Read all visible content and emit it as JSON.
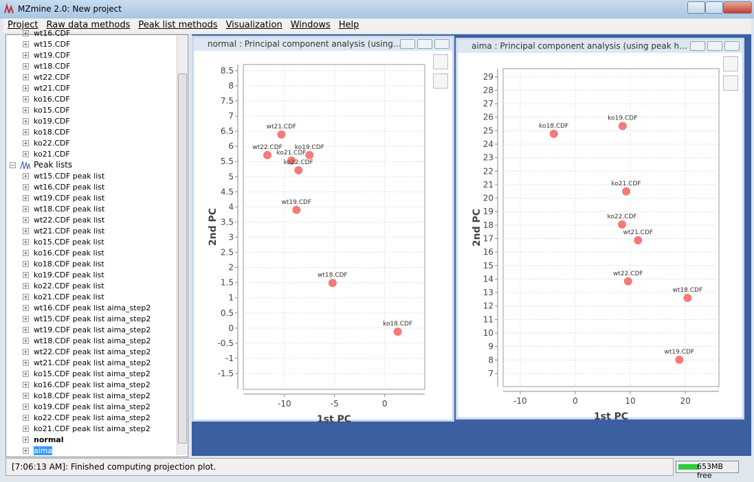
{
  "window": {
    "title": "MZmine 2.0: New project"
  },
  "menu": [
    "Project",
    "Raw data methods",
    "Peak list methods",
    "Visualization",
    "Windows",
    "Help"
  ],
  "tree": {
    "raw_files": [
      "wt16.CDF",
      "wt15.CDF",
      "wt19.CDF",
      "wt18.CDF",
      "wt22.CDF",
      "wt21.CDF",
      "ko16.CDF",
      "ko15.CDF",
      "ko19.CDF",
      "ko18.CDF",
      "ko22.CDF",
      "ko21.CDF"
    ],
    "peak_lists_heading": "Peak lists",
    "peak_lists": [
      "wt15.CDF peak list",
      "wt16.CDF peak list",
      "wt19.CDF peak list",
      "wt18.CDF peak list",
      "wt22.CDF peak list",
      "wt21.CDF peak list",
      "ko15.CDF peak list",
      "ko16.CDF peak list",
      "ko18.CDF peak list",
      "ko19.CDF peak list",
      "ko22.CDF peak list",
      "ko21.CDF peak list",
      "wt16.CDF peak list aima_step2",
      "wt15.CDF peak list aima_step2",
      "wt19.CDF peak list aima_step2",
      "wt18.CDF peak list aima_step2",
      "wt22.CDF peak list aima_step2",
      "wt21.CDF peak list aima_step2",
      "ko15.CDF peak list aima_step2",
      "ko16.CDF peak list aima_step2",
      "ko18.CDF peak list aima_step2",
      "ko19.CDF peak list aima_step2",
      "ko22.CDF peak list aima_step2",
      "ko21.CDF peak list aima_step2"
    ],
    "plots": [
      "normal",
      "aima"
    ]
  },
  "windows": [
    {
      "title": "normal : Principal component analysis (using…"
    },
    {
      "title": "aima : Principal component analysis (using peak h…"
    }
  ],
  "status": {
    "message": "[7:06:13 AM]: Finished computing projection plot.",
    "memory": "653MB free"
  },
  "chart_data": [
    {
      "type": "scatter",
      "xlabel": "1st PC",
      "ylabel": "2nd PC",
      "grid": true,
      "xlim": [
        -14.1,
        4
      ],
      "ylim": [
        -2.02,
        8.7
      ],
      "xticks": [
        -10,
        -5,
        0
      ],
      "yticks": [
        -1.5,
        -1,
        -0.5,
        0,
        0.5,
        1,
        1.5,
        2,
        2.5,
        3,
        3.5,
        4,
        4.5,
        5,
        5.5,
        6,
        6.5,
        7,
        7.5,
        8,
        8.5
      ],
      "series": [
        {
          "color": "#f47a7a",
          "point_labels": [
            "wt21.CDF",
            "wt22.CDF",
            "ko21.CDF",
            "ko19.CDF",
            "ko22.CDF",
            "wt19.CDF",
            "wt18.CDF",
            "ko18.CDF"
          ],
          "x": [
            -10.3,
            -11.7,
            -9.3,
            -7.5,
            -8.6,
            -8.8,
            -5.2,
            1.3
          ],
          "values": [
            6.39,
            5.71,
            5.53,
            5.71,
            5.21,
            3.9,
            1.49,
            -0.12
          ]
        }
      ]
    },
    {
      "type": "scatter",
      "xlabel": "1st PC",
      "ylabel": "2nd PC",
      "grid": true,
      "xlim": [
        -13.1,
        26.1
      ],
      "ylim": [
        6.03,
        29.6
      ],
      "xticks": [
        -10,
        0,
        10,
        20
      ],
      "yticks": [
        7,
        8,
        9,
        10,
        11,
        12,
        13,
        14,
        15,
        16,
        17,
        18,
        19,
        20,
        21,
        22,
        23,
        24,
        25,
        26,
        27,
        28,
        29
      ],
      "series": [
        {
          "color": "#f47a7a",
          "point_labels": [
            "ko18.CDF",
            "ko19.CDF",
            "ko21.CDF",
            "ko22.CDF",
            "wt21.CDF",
            "wt22.CDF",
            "wt18.CDF",
            "wt19.CDF"
          ],
          "x": [
            -3.9,
            8.6,
            9.25,
            8.5,
            11.4,
            9.6,
            20.4,
            18.9
          ],
          "values": [
            24.77,
            25.35,
            20.5,
            18.05,
            16.88,
            13.83,
            12.6,
            8.02
          ]
        }
      ]
    }
  ]
}
